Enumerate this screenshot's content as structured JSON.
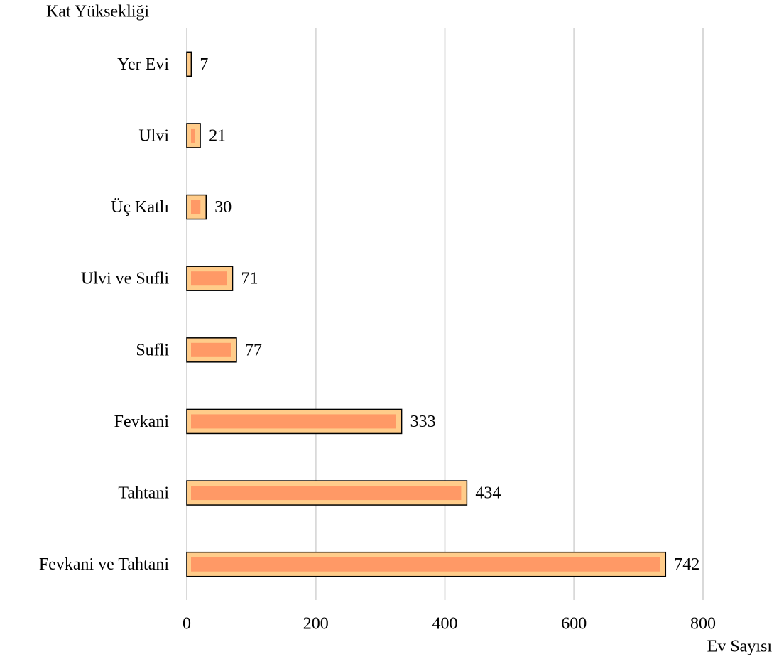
{
  "chart_data": {
    "type": "barh",
    "y_label": "Kat Yüksekliği",
    "x_label": "Ev Sayısı",
    "categories": [
      "Yer Evi",
      "Ulvi",
      "Üç Katlı",
      "Ulvi ve Sufli",
      "Sufli",
      "Fevkani",
      "Tahtani",
      "Fevkani ve Tahtani"
    ],
    "values": [
      7,
      21,
      30,
      71,
      77,
      333,
      434,
      742
    ],
    "color": "#ffcc8a",
    "inner_color": "#ff9966",
    "xlim": [
      0,
      800
    ],
    "xticks": [
      0,
      200,
      400,
      600,
      800
    ],
    "grid": true
  }
}
